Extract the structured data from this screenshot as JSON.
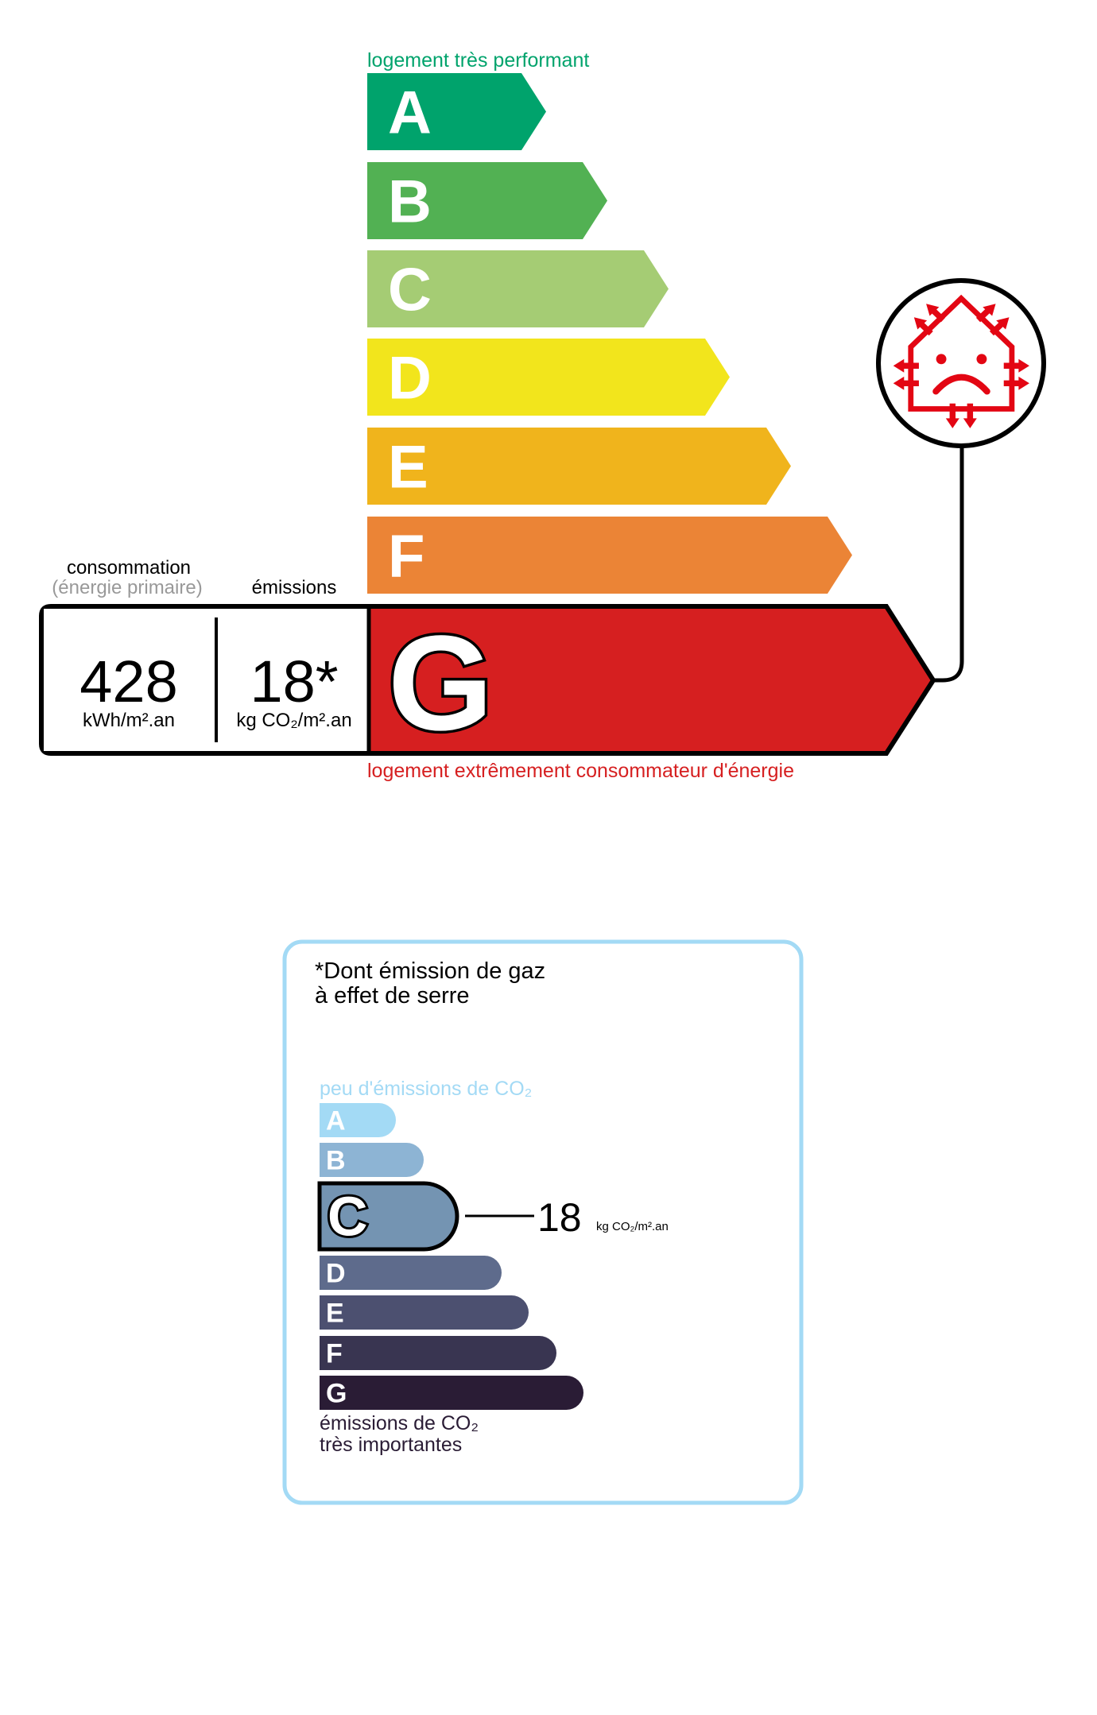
{
  "dpe": {
    "top_label": "logement très performant",
    "bottom_label": "logement extrêmement consommateur d'énergie",
    "active_class": "G",
    "classes": [
      {
        "letter": "A",
        "color": "#00a36c"
      },
      {
        "letter": "B",
        "color": "#52b153"
      },
      {
        "letter": "C",
        "color": "#a5cc74"
      },
      {
        "letter": "D",
        "color": "#f2e51c"
      },
      {
        "letter": "E",
        "color": "#f0b41c"
      },
      {
        "letter": "F",
        "color": "#eb8436"
      },
      {
        "letter": "G",
        "color": "#d61f20"
      }
    ],
    "consumption": {
      "label": "consommation",
      "sublabel": "(énergie primaire)",
      "value": "428",
      "unit": "kWh/m².an"
    },
    "emissions": {
      "label": "émissions",
      "value": "18*",
      "unit": "kg CO₂/m².an"
    },
    "icon": "unhappy-house-heat-loss-icon",
    "top_label_color": "#00a36c",
    "bottom_label_color": "#d61f20"
  },
  "ges": {
    "title_line1": "*Dont émission de gaz",
    "title_line2": "à effet de serre",
    "top_label": "peu d'émissions de CO₂",
    "bottom_label_line1": "émissions de CO₂",
    "bottom_label_line2": "très importantes",
    "active_class": "C",
    "value": "18",
    "unit": "kg CO₂/m².an",
    "border_color": "#a3daf5",
    "classes": [
      {
        "letter": "A",
        "color": "#a3daf5"
      },
      {
        "letter": "B",
        "color": "#8db4d4"
      },
      {
        "letter": "C",
        "color": "#7494b2"
      },
      {
        "letter": "D",
        "color": "#5e6b8c"
      },
      {
        "letter": "E",
        "color": "#4c5070"
      },
      {
        "letter": "F",
        "color": "#393551"
      },
      {
        "letter": "G",
        "color": "#2a1c35"
      }
    ]
  }
}
